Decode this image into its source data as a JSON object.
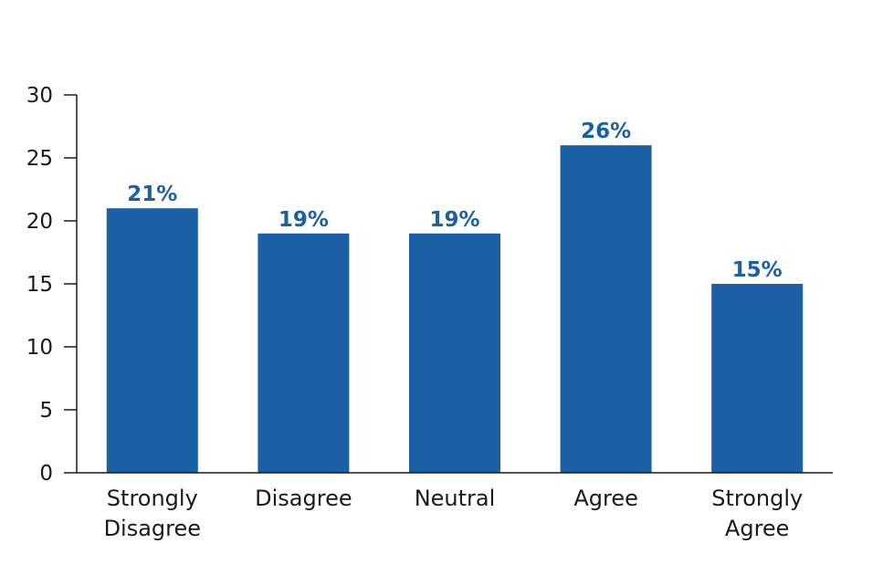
{
  "chart_data": {
    "type": "bar",
    "categories": [
      [
        "Strongly",
        "Disagree"
      ],
      [
        "Disagree"
      ],
      [
        "Neutral"
      ],
      [
        "Agree"
      ],
      [
        "Strongly",
        "Agree"
      ]
    ],
    "values": [
      21,
      19,
      19,
      26,
      15
    ],
    "data_labels": [
      "21%",
      "19%",
      "19%",
      "26%",
      "15%"
    ],
    "yticks": [
      "0",
      "5",
      "10",
      "15",
      "20",
      "25",
      "30"
    ],
    "ylim": [
      0,
      30
    ],
    "title": "",
    "xlabel": "",
    "ylabel": "",
    "grid": false,
    "legend": "none",
    "colors": {
      "bar": "#1b5fa5",
      "label": "#1b5fa5",
      "axis": "#1a1a1a"
    }
  }
}
